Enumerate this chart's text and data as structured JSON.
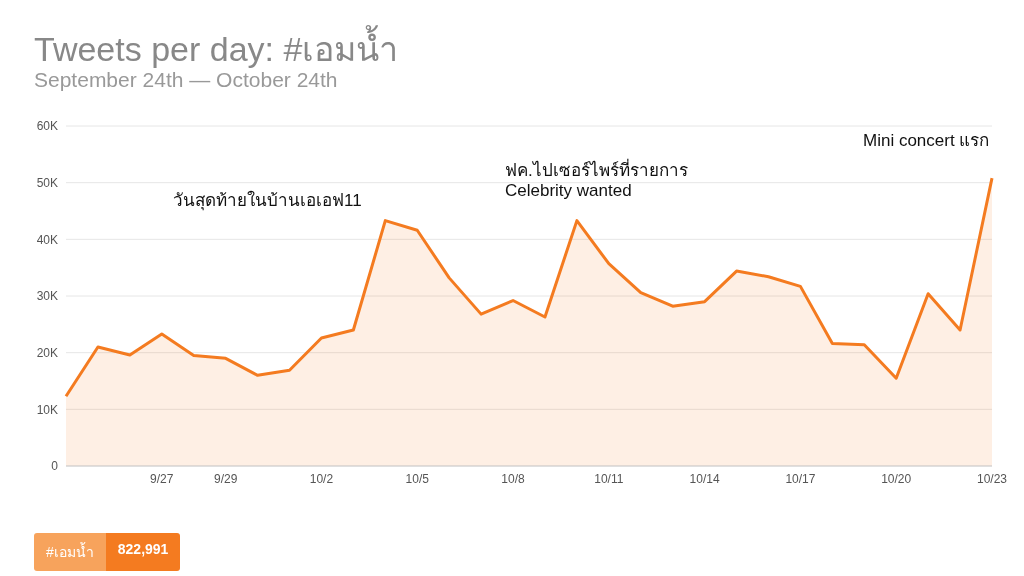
{
  "chart_data": {
    "type": "area",
    "title": "Tweets per day: #เอมน้ำ",
    "subtitle": "September 24th — October 24th",
    "categories": [
      null,
      null,
      null,
      "9/27",
      null,
      "9/29",
      null,
      null,
      "10/2",
      null,
      null,
      "10/5",
      null,
      null,
      "10/8",
      null,
      null,
      "10/11",
      null,
      null,
      "10/14",
      null,
      null,
      "10/17",
      null,
      null,
      "10/20",
      null,
      null,
      "10/23"
    ],
    "series": [
      {
        "color": "#f47b20",
        "values": [
          12300,
          21000,
          19600,
          23300,
          19500,
          19000,
          16000,
          16900,
          22600,
          24000,
          43300,
          41600,
          33200,
          26800,
          29200,
          26300,
          43300,
          35700,
          30600,
          28200,
          29000,
          34400,
          33400,
          31700,
          21600,
          21400,
          15500,
          30400,
          24000,
          50800
        ]
      }
    ],
    "ylim": [
      0,
      60000
    ],
    "yticks": [
      0,
      {
        "value": 10000,
        "label": "10K"
      },
      {
        "value": 20000,
        "label": "20K"
      },
      {
        "value": 30000,
        "label": "30K"
      },
      {
        "value": 40000,
        "label": "40K"
      },
      {
        "value": 50000,
        "label": "50K"
      },
      {
        "value": 60000,
        "label": "60K"
      }
    ],
    "grid": "y",
    "marker": "none",
    "annotations": [
      "วันสุดท้ายในบ้านเอเอฟ11",
      "ฟค.ไปเซอร์ไพร์ที่รายการ\nCelebrity wanted",
      "Mini concert แรก",
      "#เอมน้ำ 822,991"
    ]
  }
}
